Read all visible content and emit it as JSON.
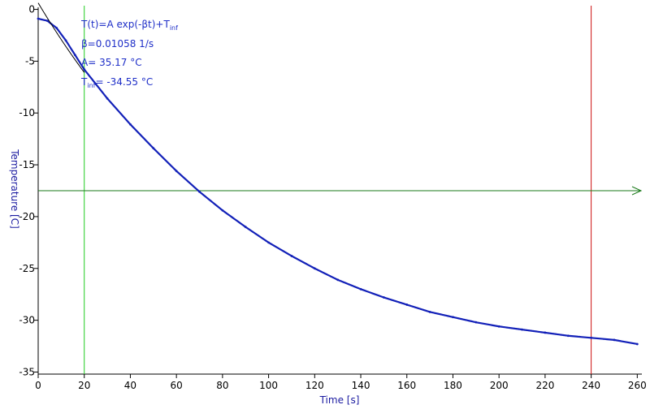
{
  "chart_data": {
    "type": "line",
    "title": "",
    "xlabel": "Time [s]",
    "ylabel": "Temperature [C]",
    "xlim": [
      0,
      262
    ],
    "ylim": [
      -35.2,
      0.2
    ],
    "x_ticks": [
      0,
      20,
      40,
      60,
      80,
      100,
      120,
      140,
      160,
      180,
      200,
      220,
      240,
      260
    ],
    "y_ticks": [
      0,
      -5,
      -10,
      -15,
      -20,
      -25,
      -30,
      -35
    ],
    "grid": false,
    "series": [
      {
        "role": "measured",
        "color": "#1220b8",
        "x": [
          0,
          4,
          8,
          12,
          16,
          20,
          25,
          30,
          40,
          50,
          60,
          70,
          80,
          90,
          100,
          110,
          120,
          130,
          140,
          150,
          160,
          170,
          180,
          190,
          200,
          210,
          220,
          230,
          240,
          250,
          260
        ],
        "y": [
          -0.9,
          -1.1,
          -1.8,
          -3.0,
          -4.4,
          -5.8,
          -7.2,
          -8.6,
          -11.1,
          -13.4,
          -15.6,
          -17.6,
          -19.4,
          -21.0,
          -22.5,
          -23.8,
          -25.0,
          -26.1,
          -27.0,
          -27.8,
          -28.5,
          -29.2,
          -29.7,
          -30.2,
          -30.6,
          -30.9,
          -31.2,
          -31.5,
          -31.7,
          -31.9,
          -32.3
        ]
      },
      {
        "role": "fit",
        "color": "#000000",
        "x_range": [
          0,
          20
        ],
        "A": 35.17,
        "beta": 0.01058,
        "T_inf": -34.55
      }
    ],
    "vertical_markers": [
      {
        "x": 20,
        "color": "#22cc22"
      },
      {
        "x": 240,
        "color": "#cc1111"
      }
    ],
    "horizontal_marker": {
      "y": -17.5,
      "color": "#1a7a1a"
    },
    "annotation": {
      "formula_main": "T(t)=A exp(-βt)+T",
      "formula_sub": "inf",
      "beta_line": "β=0.01058 1/s",
      "a_line": "A= 35.17 °C",
      "tinf_main": "T",
      "tinf_sub": "inf",
      "tinf_rest": "= -34.55 °C",
      "color": "#1f2fc8"
    },
    "colors": {
      "axis_label": "#1a1aa0",
      "axis": "#000000"
    }
  }
}
